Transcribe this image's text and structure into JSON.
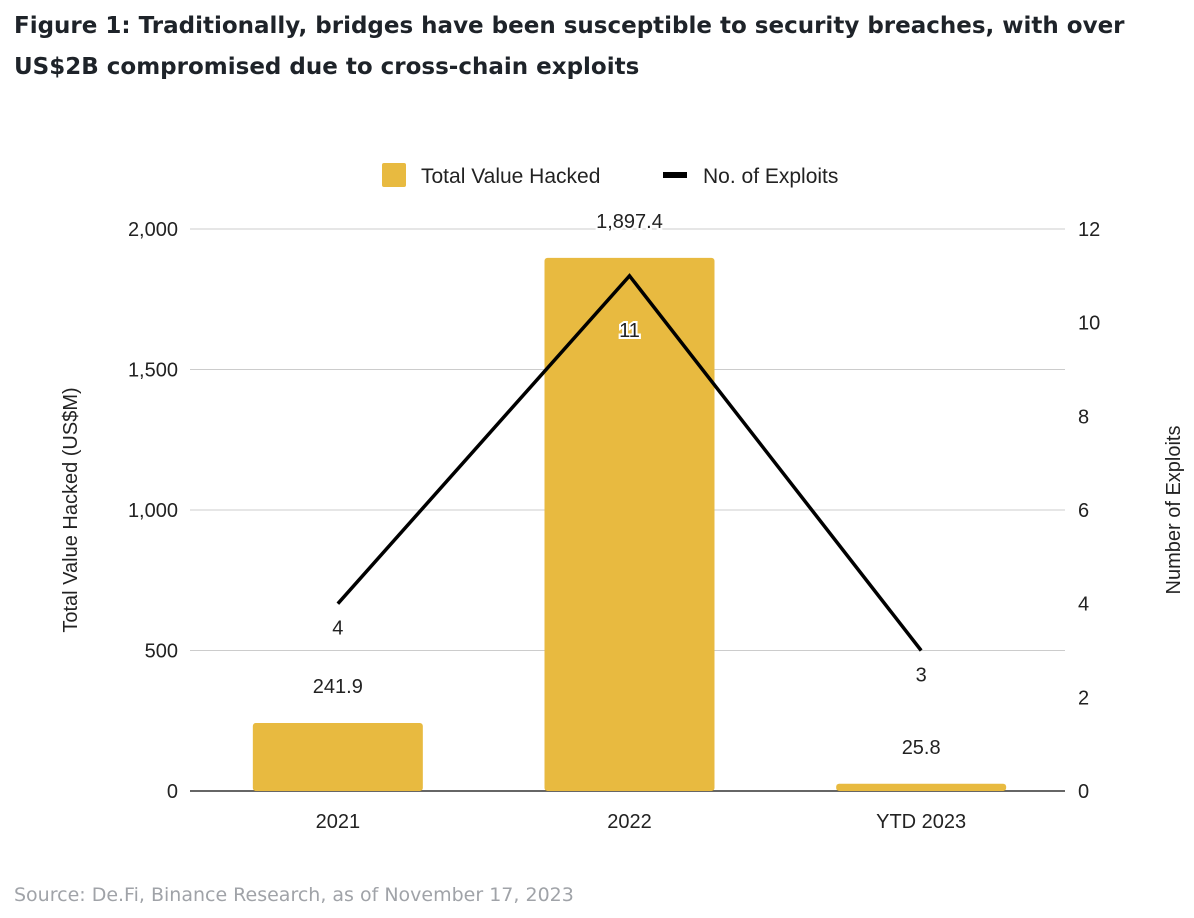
{
  "title": "Figure 1: Traditionally, bridges have been susceptible to security breaches, with over US$2B compromised due to cross-chain exploits",
  "source": "Source: De.Fi, Binance Research, as of November 17, 2023",
  "chart_data": {
    "type": "bar+line",
    "categories": [
      "2021",
      "2022",
      "YTD 2023"
    ],
    "series": [
      {
        "name": "Total Value Hacked",
        "type": "bar",
        "axis": "left",
        "values": [
          241.9,
          1897.4,
          25.8
        ],
        "labels": [
          "241.9",
          "1,897.4",
          "25.8"
        ],
        "color": "#E8BA40"
      },
      {
        "name": "No. of Exploits",
        "type": "line",
        "axis": "right",
        "values": [
          4,
          11,
          3
        ],
        "labels": [
          "4",
          "11",
          "3"
        ],
        "color": "#000000"
      }
    ],
    "ylabel": "Total Value Hacked (US$M)",
    "y2label": "Number of Exploits",
    "ylim": [
      0,
      2000
    ],
    "y2lim": [
      0,
      12
    ],
    "yticks": [
      "0",
      "500",
      "1,000",
      "1,500",
      "2,000"
    ],
    "y2ticks": [
      "0",
      "2",
      "4",
      "6",
      "8",
      "10",
      "12"
    ],
    "grid": true,
    "legend": "top"
  }
}
